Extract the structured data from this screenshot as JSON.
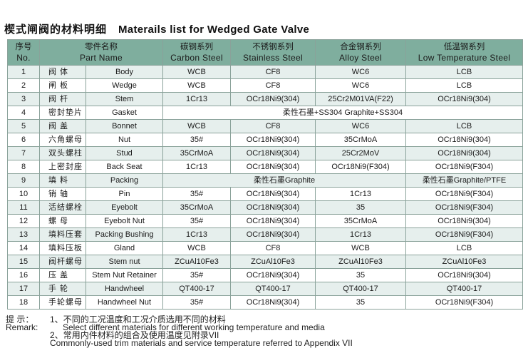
{
  "title": {
    "cn": "楔式闸阀的材料明细",
    "en": "Materails list for Wedged Gate Valve"
  },
  "header": {
    "no": {
      "cn": "序号",
      "en": "No."
    },
    "part": {
      "cn": "零件名称",
      "en": "Part Name"
    },
    "carbon": {
      "cn": "碳钢系列",
      "en": "Carbon Steel"
    },
    "stainless": {
      "cn": "不锈钢系列",
      "en": "Stainless Steel"
    },
    "alloy": {
      "cn": "合金钢系列",
      "en": "Alloy Steel"
    },
    "lowtemp": {
      "cn": "低温钢系列",
      "en": "Low Temperature Steel"
    }
  },
  "rows": [
    {
      "no": "1",
      "cn": "阀 体",
      "en": "Body",
      "carbon": "WCB",
      "stainless": "CF8",
      "alloy": "WC6",
      "lowtemp": "LCB"
    },
    {
      "no": "2",
      "cn": "闸 板",
      "en": "Wedge",
      "carbon": "WCB",
      "stainless": "CF8",
      "alloy": "WC6",
      "lowtemp": "LCB"
    },
    {
      "no": "3",
      "cn": "阀 杆",
      "en": "Stem",
      "carbon": "1Cr13",
      "stainless": "OCr18Ni9(304)",
      "alloy": "25Cr2M01VA(F22)",
      "lowtemp": "OCr18Ni9(304)"
    },
    {
      "no": "4",
      "cn": "密封垫片",
      "en": "Gasket",
      "merged": "柔性石墨+SS304 Graphite+SS304"
    },
    {
      "no": "5",
      "cn": "阀 盖",
      "en": "Bonnet",
      "carbon": "WCB",
      "stainless": "CF8",
      "alloy": "WC6",
      "lowtemp": "LCB"
    },
    {
      "no": "6",
      "cn": "六角螺母",
      "en": "Nut",
      "carbon": "35#",
      "stainless": "OCr18Ni9(304)",
      "alloy": "35CrMoA",
      "lowtemp": "OCr18Ni9(304)"
    },
    {
      "no": "7",
      "cn": "双头螺柱",
      "en": "Stud",
      "carbon": "35CrMoA",
      "stainless": "OCr18Ni9(304)",
      "alloy": "25Cr2MoV",
      "lowtemp": "OCr18Ni9(304)"
    },
    {
      "no": "8",
      "cn": "上密封座",
      "en": "Back Seat",
      "carbon": "1Cr13",
      "stainless": "OCr18Ni9(304)",
      "alloy": "OCr18Ni9(F304)",
      "lowtemp": "OCr18Ni9(F304)"
    },
    {
      "no": "9",
      "cn": "填 料",
      "en": "Packing",
      "merged3": "柔性石墨Graphite",
      "lowtemp": "柔性石墨Graphite/PTFE"
    },
    {
      "no": "10",
      "cn": "销 轴",
      "en": "Pin",
      "carbon": "35#",
      "stainless": "OCr18Ni9(304)",
      "alloy": "1Cr13",
      "lowtemp": "OCr18Ni9(F304)"
    },
    {
      "no": "11",
      "cn": "活结螺栓",
      "en": "Eyebolt",
      "carbon": "35CrMoA",
      "stainless": "OCr18Ni9(304)",
      "alloy": "35",
      "lowtemp": "OCr18Ni9(F304)"
    },
    {
      "no": "12",
      "cn": "螺 母",
      "en": "Eyebolt Nut",
      "carbon": "35#",
      "stainless": "OCr18Ni9(304)",
      "alloy": "35CrMoA",
      "lowtemp": "OCr18Ni9(304)"
    },
    {
      "no": "13",
      "cn": "填料压套",
      "en": "Packing Bushing",
      "carbon": "1Cr13",
      "stainless": "OCr18Ni9(304)",
      "alloy": "1Cr13",
      "lowtemp": "OCr18Ni9(F304)"
    },
    {
      "no": "14",
      "cn": "填料压板",
      "en": "Gland",
      "carbon": "WCB",
      "stainless": "CF8",
      "alloy": "WCB",
      "lowtemp": "LCB"
    },
    {
      "no": "15",
      "cn": "阀杆螺母",
      "en": "Stem nut",
      "carbon": "ZCuAl10Fe3",
      "stainless": "ZCuAl10Fe3",
      "alloy": "ZCuAl10Fe3",
      "lowtemp": "ZCuAl10Fe3"
    },
    {
      "no": "16",
      "cn": "压 盖",
      "en": "Stem Nut Retainer",
      "carbon": "35#",
      "stainless": "OCr18Ni9(304)",
      "alloy": "35",
      "lowtemp": "OCr18Ni9(304)"
    },
    {
      "no": "17",
      "cn": "手 轮",
      "en": "Handwheel",
      "carbon": "QT400-17",
      "stainless": "QT400-17",
      "alloy": "QT400-17",
      "lowtemp": "QT400-17"
    },
    {
      "no": "18",
      "cn": "手轮螺母",
      "en": "Handwheel Nut",
      "carbon": "35#",
      "stainless": "OCr18Ni9(304)",
      "alloy": "35",
      "lowtemp": "OCr18Ni9(F304)"
    }
  ],
  "remarks": {
    "label_cn": "提 示：",
    "label_en": "Remark:",
    "items": [
      {
        "num": "1、",
        "cn": "不同的工况温度和工况介质选用不同的材料",
        "en": "Select different materials for different working temperature and media"
      },
      {
        "num": "2、",
        "cn": "常用内件材料的组合及使用温度见附录VII",
        "en": "Commonly-used trim materials and service temperature referred to Appendix VII"
      }
    ]
  }
}
